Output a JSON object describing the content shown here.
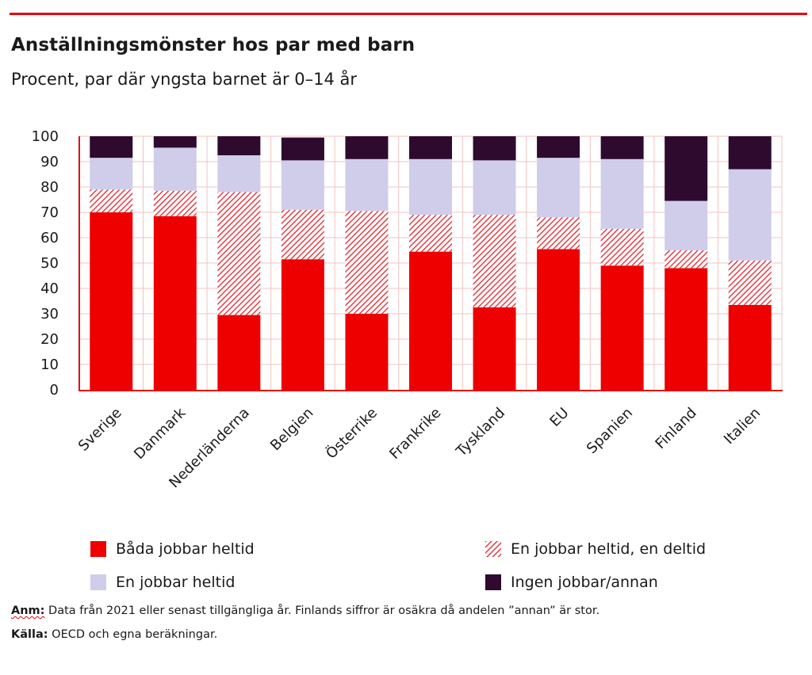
{
  "header": {
    "title": "Anställningsmönster hos par med barn",
    "subtitle": "Procent, par där yngsta barnet är 0–14 år"
  },
  "colors": {
    "accent": "#e30613",
    "full_full": "#ee0000",
    "hatch": "#e8202a",
    "one_full": "#cfcdea",
    "none": "#2d0a2e",
    "grid": "#f3c2c2"
  },
  "legend": [
    {
      "key": "full_full",
      "label": "Båda jobbar heltid"
    },
    {
      "key": "full_part",
      "label": "En jobbar heltid, en deltid"
    },
    {
      "key": "one_full",
      "label": "En jobbar heltid"
    },
    {
      "key": "none",
      "label": "Ingen jobbar/annan"
    }
  ],
  "notes": {
    "anm_label": "Anm:",
    "anm_text": " Data från 2021 eller senast tillgängliga år. Finlands siffror är osäkra då andelen ”annan” är stor.",
    "kalla_label": "Källa:",
    "kalla_text": " OECD och egna beräkningar."
  },
  "chart_data": {
    "type": "bar",
    "stacked": true,
    "title": "Anställningsmönster hos par med barn",
    "subtitle": "Procent, par där yngsta barnet är 0–14 år",
    "xlabel": "",
    "ylabel": "",
    "ylim": [
      0,
      100
    ],
    "yticks": [
      0,
      10,
      20,
      30,
      40,
      50,
      60,
      70,
      80,
      90,
      100
    ],
    "grid": true,
    "legend_position": "bottom",
    "categories": [
      "Sverige",
      "Danmark",
      "Nederländerna",
      "Belgien",
      "Österrike",
      "Frankrike",
      "Tyskland",
      "EU",
      "Spanien",
      "Finland",
      "Italien"
    ],
    "series": [
      {
        "name": "Båda jobbar heltid",
        "key": "full_full",
        "values": [
          70,
          68.5,
          29.5,
          51.5,
          30,
          54.5,
          32.5,
          55.5,
          49,
          48,
          33.5
        ]
      },
      {
        "name": "En jobbar heltid, en deltid",
        "key": "full_part",
        "values": [
          9,
          10,
          48.5,
          19.5,
          40.5,
          14.5,
          36.5,
          12.5,
          14.5,
          7,
          17.5
        ]
      },
      {
        "name": "En jobbar heltid",
        "key": "one_full",
        "values": [
          12.5,
          17,
          14.5,
          19.5,
          20.5,
          22,
          21.5,
          23.5,
          27.5,
          19.5,
          36
        ]
      },
      {
        "name": "Ingen jobbar/annan",
        "key": "none",
        "values": [
          8.5,
          4.5,
          7.5,
          9,
          9,
          9,
          9.5,
          8.5,
          9,
          25.5,
          13
        ]
      }
    ]
  }
}
